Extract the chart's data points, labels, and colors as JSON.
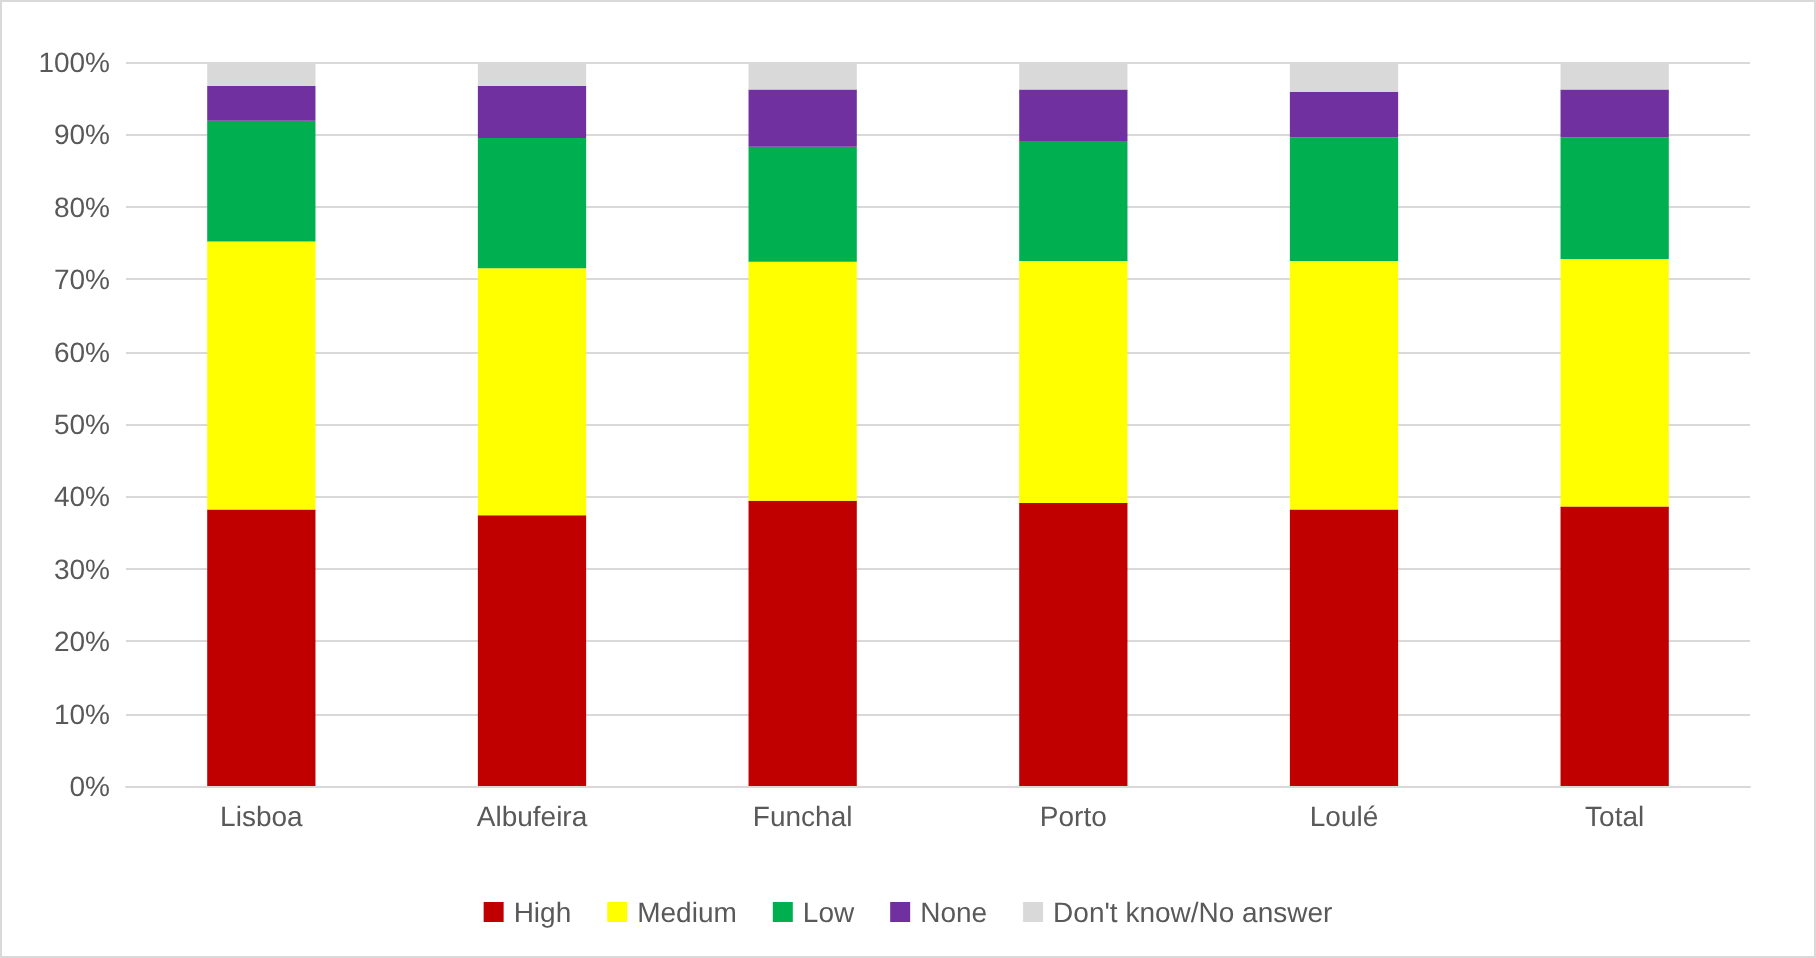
{
  "chart_data": {
    "type": "bar",
    "stacked": true,
    "categories": [
      "Lisboa",
      "Albufeira",
      "Funchal",
      "Porto",
      "Loulé",
      "Total"
    ],
    "series": [
      {
        "name": "High",
        "color": "#c00000",
        "values": [
          38.2,
          37.4,
          39.4,
          39.1,
          38.2,
          38.6
        ]
      },
      {
        "name": "Medium",
        "color": "#ffff00",
        "values": [
          37.0,
          34.1,
          33.0,
          33.4,
          34.3,
          34.2
        ]
      },
      {
        "name": "Low",
        "color": "#00b050",
        "values": [
          16.7,
          18.0,
          15.9,
          16.6,
          17.1,
          16.8
        ]
      },
      {
        "name": "None",
        "color": "#7030a0",
        "values": [
          4.8,
          7.2,
          7.9,
          7.1,
          6.3,
          6.6
        ]
      },
      {
        "name": "Don't know/No answer",
        "color": "#d9d9d9",
        "values": [
          3.3,
          3.3,
          3.8,
          3.8,
          4.1,
          3.8
        ]
      }
    ],
    "ylim": [
      0,
      100
    ],
    "yticks": [
      {
        "value": 0,
        "label": "0%"
      },
      {
        "value": 10,
        "label": "10%"
      },
      {
        "value": 20,
        "label": "20%"
      },
      {
        "value": 30,
        "label": "30%"
      },
      {
        "value": 40,
        "label": "40%"
      },
      {
        "value": 50,
        "label": "50%"
      },
      {
        "value": 60,
        "label": "60%"
      },
      {
        "value": 70,
        "label": "70%"
      },
      {
        "value": 80,
        "label": "80%"
      },
      {
        "value": 90,
        "label": "90%"
      },
      {
        "value": 100,
        "label": "100%"
      }
    ],
    "grid": "y",
    "legend": "bottom"
  }
}
